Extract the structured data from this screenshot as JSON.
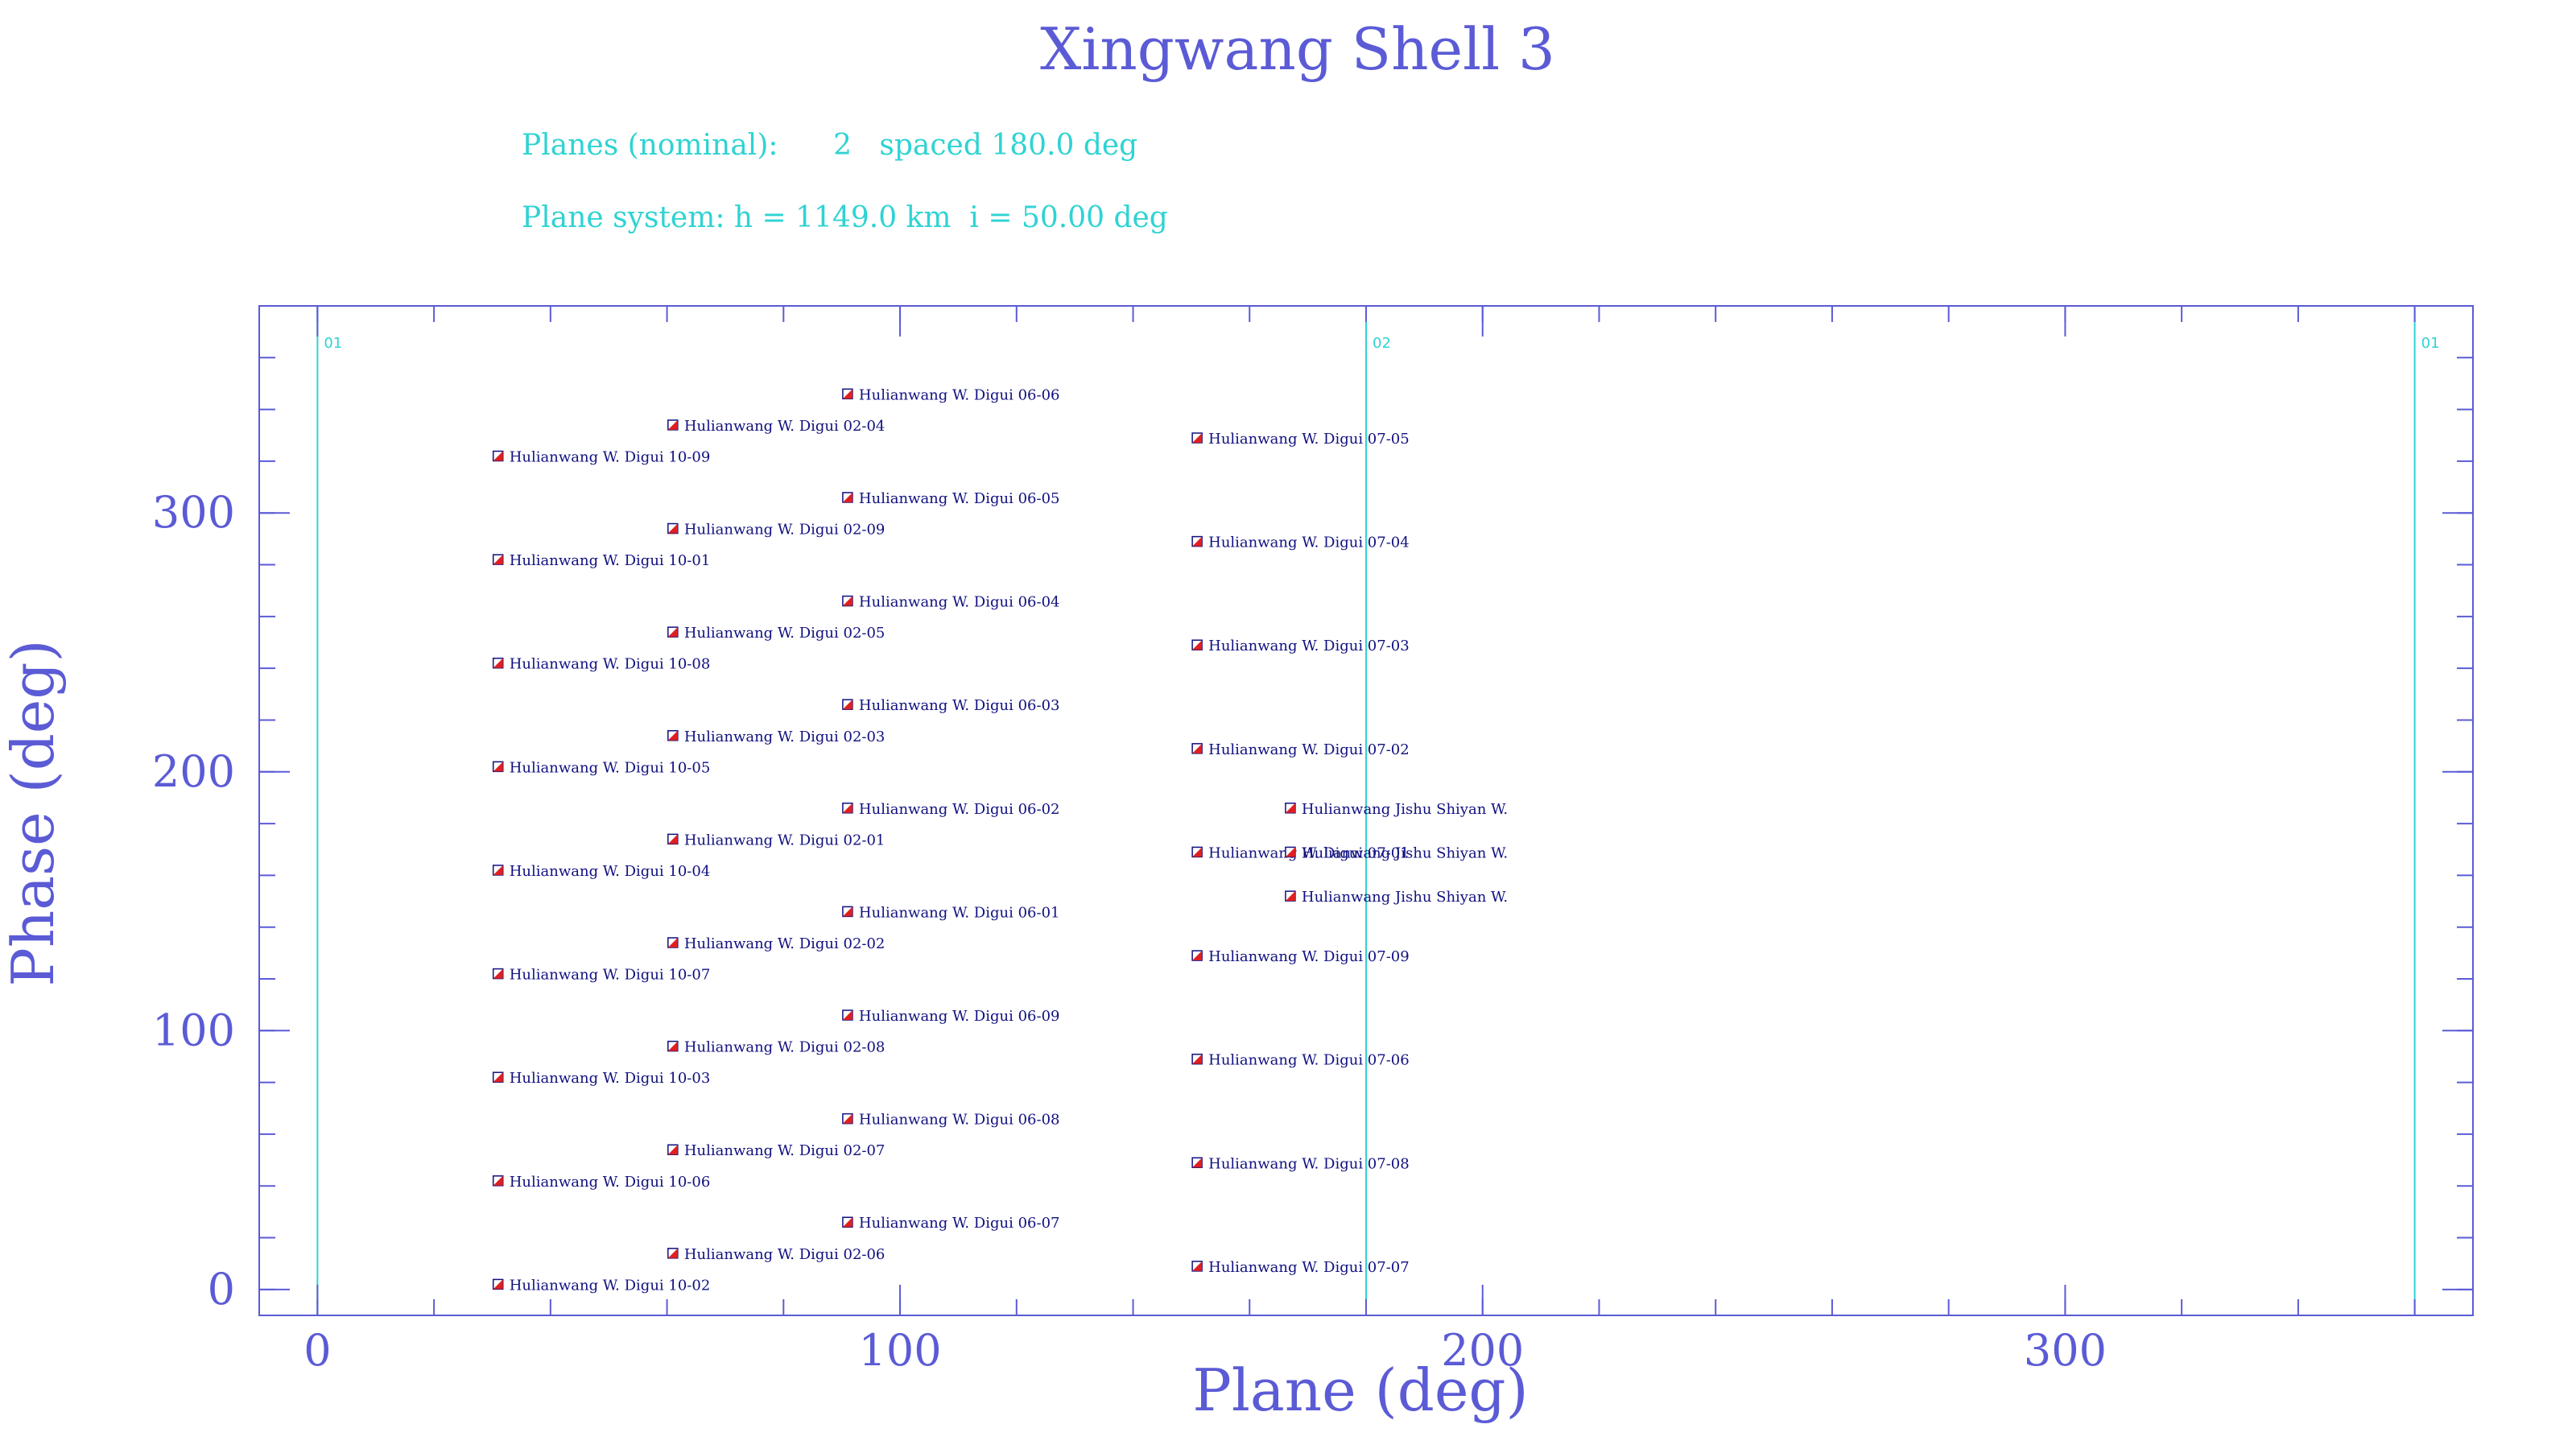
{
  "header": {
    "title": "Xingwang Shell 3",
    "planes_line": "Planes (nominal):      2   spaced 180.0 deg",
    "system_line": "Plane system: h = 1149.0 km  i = 50.00 deg"
  },
  "colors": {
    "axis": "#5b5bd6",
    "title": "#5b5bd6",
    "info": "#2fd3d3",
    "plane_line": "#2fd3d3",
    "marker_fill": "#e02020",
    "marker_edge": "#101080",
    "label": "#101080"
  },
  "chart_data": {
    "type": "scatter",
    "xlabel": "Plane (deg)",
    "ylabel": "Phase (deg)",
    "xlim": [
      -10,
      370
    ],
    "ylim": [
      -10,
      380
    ],
    "x_ticks": [
      0,
      100,
      200,
      300
    ],
    "y_ticks": [
      0,
      100,
      200,
      300
    ],
    "x_minor_step": 20,
    "y_minor_step": 20,
    "plane_lines": [
      {
        "x": 0,
        "label": "01"
      },
      {
        "x": 180,
        "label": "02"
      },
      {
        "x": 360,
        "label": "01"
      }
    ],
    "points": [
      {
        "x": 31,
        "y": 322,
        "label": "Hulianwang W. Digui 10-09"
      },
      {
        "x": 31,
        "y": 282,
        "label": "Hulianwang W. Digui 10-01"
      },
      {
        "x": 31,
        "y": 242,
        "label": "Hulianwang W. Digui 10-08"
      },
      {
        "x": 31,
        "y": 202,
        "label": "Hulianwang W. Digui 10-05"
      },
      {
        "x": 31,
        "y": 162,
        "label": "Hulianwang W. Digui 10-04"
      },
      {
        "x": 31,
        "y": 122,
        "label": "Hulianwang W. Digui 10-07"
      },
      {
        "x": 31,
        "y": 82,
        "label": "Hulianwang W. Digui 10-03"
      },
      {
        "x": 31,
        "y": 42,
        "label": "Hulianwang W. Digui 10-06"
      },
      {
        "x": 31,
        "y": 2,
        "label": "Hulianwang W. Digui 10-02"
      },
      {
        "x": 61,
        "y": 334,
        "label": "Hulianwang W. Digui 02-04"
      },
      {
        "x": 61,
        "y": 294,
        "label": "Hulianwang W. Digui 02-09"
      },
      {
        "x": 61,
        "y": 254,
        "label": "Hulianwang W. Digui 02-05"
      },
      {
        "x": 61,
        "y": 214,
        "label": "Hulianwang W. Digui 02-03"
      },
      {
        "x": 61,
        "y": 174,
        "label": "Hulianwang W. Digui 02-01"
      },
      {
        "x": 61,
        "y": 134,
        "label": "Hulianwang W. Digui 02-02"
      },
      {
        "x": 61,
        "y": 94,
        "label": "Hulianwang W. Digui 02-08"
      },
      {
        "x": 61,
        "y": 54,
        "label": "Hulianwang W. Digui 02-07"
      },
      {
        "x": 61,
        "y": 14,
        "label": "Hulianwang W. Digui 02-06"
      },
      {
        "x": 91,
        "y": 346,
        "label": "Hulianwang W. Digui 06-06"
      },
      {
        "x": 91,
        "y": 306,
        "label": "Hulianwang W. Digui 06-05"
      },
      {
        "x": 91,
        "y": 266,
        "label": "Hulianwang W. Digui 06-04"
      },
      {
        "x": 91,
        "y": 226,
        "label": "Hulianwang W. Digui 06-03"
      },
      {
        "x": 91,
        "y": 186,
        "label": "Hulianwang W. Digui 06-02"
      },
      {
        "x": 91,
        "y": 146,
        "label": "Hulianwang W. Digui 06-01"
      },
      {
        "x": 91,
        "y": 106,
        "label": "Hulianwang W. Digui 06-09"
      },
      {
        "x": 91,
        "y": 66,
        "label": "Hulianwang W. Digui 06-08"
      },
      {
        "x": 91,
        "y": 26,
        "label": "Hulianwang W. Digui 06-07"
      },
      {
        "x": 151,
        "y": 329,
        "label": "Hulianwang W. Digui 07-05"
      },
      {
        "x": 151,
        "y": 289,
        "label": "Hulianwang W. Digui 07-04"
      },
      {
        "x": 151,
        "y": 249,
        "label": "Hulianwang W. Digui 07-03"
      },
      {
        "x": 151,
        "y": 209,
        "label": "Hulianwang W. Digui 07-02"
      },
      {
        "x": 151,
        "y": 169,
        "label": "Hulianwang W. Digui 07-01"
      },
      {
        "x": 151,
        "y": 129,
        "label": "Hulianwang W. Digui 07-09"
      },
      {
        "x": 151,
        "y": 89,
        "label": "Hulianwang W. Digui 07-06"
      },
      {
        "x": 151,
        "y": 49,
        "label": "Hulianwang W. Digui 07-08"
      },
      {
        "x": 151,
        "y": 9,
        "label": "Hulianwang W. Digui 07-07"
      },
      {
        "x": 167,
        "y": 186,
        "label": "Hulianwang Jishu Shiyan W."
      },
      {
        "x": 167,
        "y": 169,
        "label": "Hulianwang Jishu Shiyan W."
      },
      {
        "x": 167,
        "y": 152,
        "label": "Hulianwang Jishu Shiyan W."
      }
    ]
  }
}
